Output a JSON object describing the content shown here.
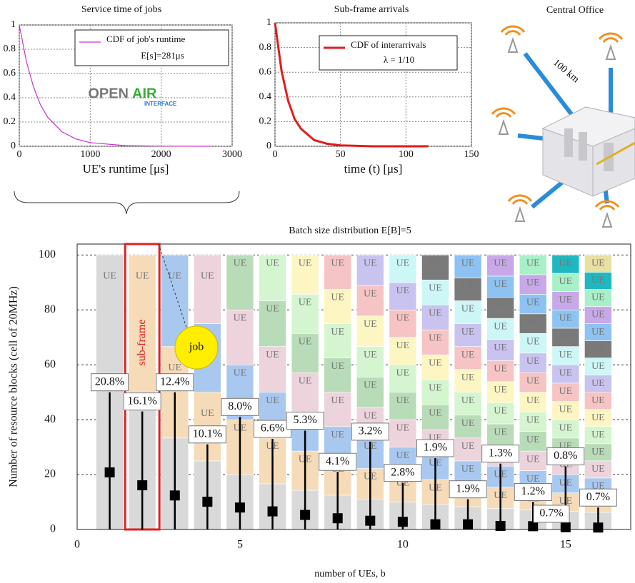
{
  "chart_data": [
    {
      "type": "line",
      "title": "Service time of jobs",
      "x_label": "UE's runtime [μs]",
      "x": [
        0,
        100,
        200,
        300,
        400,
        600,
        800,
        1000,
        1500,
        2000,
        2700
      ],
      "series": [
        {
          "name": "CDF of job's runtime",
          "color": "#cc33cc",
          "values": [
            1,
            0.7,
            0.49,
            0.34,
            0.24,
            0.12,
            0.06,
            0.03,
            0.005,
            0.001,
            0
          ]
        }
      ],
      "annotations": [
        "E[s]=281μs",
        "OPEN",
        "AIR",
        "INTERFACE"
      ],
      "xlim": [
        0,
        3000
      ],
      "ylim": [
        0,
        1
      ],
      "xticks": [
        0,
        1000,
        2000,
        3000
      ],
      "yticks": [
        0,
        0.2,
        0.4,
        0.6,
        0.8,
        1
      ],
      "grid": true
    },
    {
      "type": "line",
      "title": "Sub-frame arrivals",
      "x_label": "time (t) [μs]",
      "x": [
        0,
        5,
        10,
        15,
        20,
        30,
        40,
        50,
        75,
        100,
        117
      ],
      "series": [
        {
          "name": "CDF of interarrivals",
          "color": "#e41a1c",
          "values": [
            1,
            0.61,
            0.37,
            0.22,
            0.14,
            0.05,
            0.02,
            0.007,
            0,
            0,
            0
          ]
        }
      ],
      "annotations": [
        "λ = 1/10"
      ],
      "xlim": [
        0,
        150
      ],
      "ylim": [
        0,
        1
      ],
      "xticks": [
        0,
        50,
        100,
        150
      ],
      "yticks": [
        0,
        0.2,
        0.4,
        0.6,
        0.8,
        1
      ],
      "grid": true
    },
    {
      "type": "stacked_column",
      "title": "Batch size distribution E[B]=5",
      "x_label": "number of UEs, b",
      "y_label": "Number of resource blocks (cell of 20MHz)",
      "x": [
        1,
        2,
        3,
        4,
        5,
        6,
        7,
        8,
        9,
        10,
        11,
        12,
        13,
        14,
        15,
        16
      ],
      "values": [
        20.8,
        16.1,
        12.4,
        10.1,
        8.0,
        6.6,
        5.3,
        4.1,
        3.2,
        2.8,
        1.9,
        1.9,
        1.3,
        1.2,
        0.8,
        0.7
      ],
      "value_labels": [
        "20.8%",
        "16.1%",
        "12.4%",
        "10.1%",
        "8.0%",
        "6.6%",
        "5.3%",
        "4.1%",
        "3.2%",
        "2.8%",
        "1.9%",
        "1.9%",
        "1.3%",
        "1.2%",
        "0.8%",
        "0.7%"
      ],
      "error_high": [
        50,
        43,
        50,
        31,
        41,
        33,
        36,
        21,
        32,
        17,
        26,
        11,
        24,
        10,
        23,
        8
      ],
      "segment_total": 100,
      "segment_label": "UE",
      "segment_colors": [
        "#d9d9d9",
        "#f5dbb8",
        "#a9c8f0",
        "#ecd3dc",
        "#b9dcb8",
        "#d4f5cf",
        "#fdf6c3",
        "#f6c4c4",
        "#c9c3f0",
        "#cdf7f7",
        "#7a7a7a",
        "#8ec2f2",
        "#c8a8e8",
        "#a8f0c8",
        "#20b8c0",
        "#e8e0a0"
      ],
      "highlight_x": 2,
      "annotations": [
        "sub-frame",
        "job",
        "0.7%"
      ],
      "xlim": [
        0,
        17
      ],
      "ylim": [
        0,
        104
      ],
      "xticks": [
        0,
        5,
        10,
        15
      ],
      "yticks": [
        0,
        20,
        40,
        60,
        80,
        100
      ],
      "grid": true
    }
  ],
  "diagram": {
    "title": "Central Office",
    "link_label": "100 km"
  }
}
